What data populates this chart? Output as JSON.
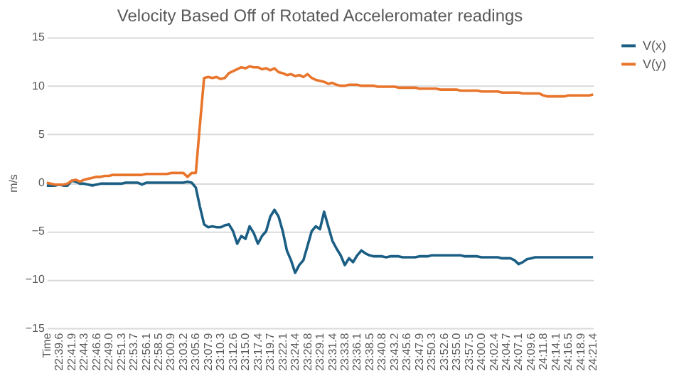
{
  "chart_data": {
    "type": "line",
    "title": "Velocity Based Off of Rotated Acceleromater readings",
    "ylabel": "m/s",
    "categories": [
      "Time",
      null,
      null,
      "22:39.6",
      null,
      null,
      "22:41.9",
      null,
      null,
      "22:44.3",
      null,
      null,
      "22:46.6",
      null,
      null,
      "22:49.0",
      null,
      null,
      "22:51.3",
      null,
      null,
      "22:53.7",
      null,
      null,
      "22:56.1",
      null,
      null,
      "22:58.5",
      null,
      null,
      "23:00.9",
      null,
      null,
      "23:03.2",
      null,
      null,
      "23:05.6",
      null,
      null,
      "23:07.9",
      null,
      null,
      "23:10.3",
      null,
      null,
      "23:12.6",
      null,
      null,
      "23:15.0",
      null,
      null,
      "23:17.4",
      null,
      null,
      "23:19.7",
      null,
      null,
      "23:22.1",
      null,
      null,
      "23:24.4",
      null,
      null,
      "23:26.8",
      null,
      null,
      "23:29.1",
      null,
      null,
      "23:31.4",
      null,
      null,
      "23:33.8",
      null,
      null,
      "23:36.1",
      null,
      null,
      "23:38.5",
      null,
      null,
      "23:40.8",
      null,
      null,
      "23:43.2",
      null,
      null,
      "23:45.6",
      null,
      null,
      "23:47.9",
      null,
      null,
      "23:50.3",
      null,
      null,
      "23:52.6",
      null,
      null,
      "23:55.0",
      null,
      null,
      "23:57.5",
      null,
      null,
      "24:00.0",
      null,
      null,
      "24:02.4",
      null,
      null,
      "24:04.7",
      null,
      null,
      "24:07.1",
      null,
      null,
      "24:09.6",
      null,
      null,
      "24:11.8",
      null,
      null,
      "24:14.1",
      null,
      null,
      "24:16.5",
      null,
      null,
      "24:18.9",
      null,
      null,
      "24:21.4"
    ],
    "series": [
      {
        "name": "V(x)",
        "color": "#1b5e84",
        "values": [
          -0.3,
          -0.3,
          -0.3,
          -0.2,
          -0.3,
          -0.3,
          0.2,
          0.1,
          -0.1,
          -0.1,
          -0.2,
          -0.3,
          -0.2,
          -0.1,
          -0.1,
          -0.1,
          -0.1,
          -0.1,
          -0.1,
          0.0,
          0.0,
          0.0,
          0.0,
          -0.2,
          0.0,
          0.0,
          0.0,
          0.0,
          0.0,
          0.0,
          0.0,
          0.0,
          0.0,
          0.0,
          0.1,
          0.0,
          -0.5,
          -2.5,
          -4.3,
          -4.6,
          -4.5,
          -4.6,
          -4.6,
          -4.4,
          -4.3,
          -5.0,
          -6.3,
          -5.5,
          -5.8,
          -4.5,
          -5.2,
          -6.3,
          -5.5,
          -5.0,
          -3.5,
          -2.8,
          -3.5,
          -5.0,
          -7.0,
          -8.0,
          -9.3,
          -8.5,
          -8.0,
          -6.5,
          -5.0,
          -4.5,
          -4.8,
          -3.0,
          -4.5,
          -6.0,
          -6.8,
          -7.5,
          -8.5,
          -7.8,
          -8.2,
          -7.5,
          -7.0,
          -7.3,
          -7.5,
          -7.6,
          -7.6,
          -7.6,
          -7.7,
          -7.6,
          -7.6,
          -7.6,
          -7.7,
          -7.7,
          -7.7,
          -7.7,
          -7.6,
          -7.6,
          -7.6,
          -7.5,
          -7.5,
          -7.5,
          -7.5,
          -7.5,
          -7.5,
          -7.5,
          -7.5,
          -7.6,
          -7.6,
          -7.6,
          -7.6,
          -7.7,
          -7.7,
          -7.7,
          -7.7,
          -7.7,
          -7.8,
          -7.8,
          -7.8,
          -8.0,
          -8.4,
          -8.2,
          -7.9,
          -7.8,
          -7.7,
          -7.7,
          -7.7,
          -7.7,
          -7.7,
          -7.7,
          -7.7,
          -7.7,
          -7.7,
          -7.7,
          -7.7,
          -7.7,
          -7.7,
          -7.7,
          -7.7
        ]
      },
      {
        "name": "V(y)",
        "color": "#e8752b",
        "values": [
          0,
          -0.1,
          -0.2,
          -0.2,
          -0.2,
          -0.1,
          0.2,
          0.3,
          0.1,
          0.3,
          0.4,
          0.5,
          0.6,
          0.6,
          0.7,
          0.7,
          0.8,
          0.8,
          0.8,
          0.8,
          0.8,
          0.8,
          0.8,
          0.8,
          0.9,
          0.9,
          0.9,
          0.9,
          0.9,
          0.9,
          1.0,
          1.0,
          1.0,
          1.0,
          0.6,
          1.0,
          1.0,
          6.0,
          10.8,
          10.9,
          10.8,
          10.9,
          10.7,
          10.8,
          11.3,
          11.5,
          11.7,
          11.9,
          11.8,
          12.0,
          11.9,
          11.9,
          11.7,
          11.8,
          11.6,
          11.8,
          11.4,
          11.3,
          11.1,
          11.2,
          11.0,
          11.1,
          10.9,
          11.2,
          10.8,
          10.6,
          10.5,
          10.4,
          10.2,
          10.3,
          10.1,
          10.0,
          10.0,
          10.1,
          10.1,
          10.1,
          10.0,
          10.0,
          10.0,
          10.0,
          9.9,
          9.9,
          9.9,
          9.9,
          9.9,
          9.8,
          9.8,
          9.8,
          9.8,
          9.8,
          9.7,
          9.7,
          9.7,
          9.7,
          9.7,
          9.6,
          9.6,
          9.6,
          9.6,
          9.6,
          9.5,
          9.5,
          9.5,
          9.5,
          9.5,
          9.4,
          9.4,
          9.4,
          9.4,
          9.4,
          9.3,
          9.3,
          9.3,
          9.3,
          9.3,
          9.2,
          9.2,
          9.2,
          9.2,
          9.2,
          9.0,
          8.9,
          8.9,
          8.9,
          8.9,
          8.9,
          9.0,
          9.0,
          9.0,
          9.0,
          9.0,
          9.0,
          9.1
        ]
      }
    ],
    "ylim": [
      -15,
      15
    ],
    "yticks": [
      -15,
      -10,
      -5,
      0,
      5,
      10,
      15
    ],
    "grid": "y",
    "legend": "right",
    "line_style": "solid",
    "marker": "none"
  }
}
